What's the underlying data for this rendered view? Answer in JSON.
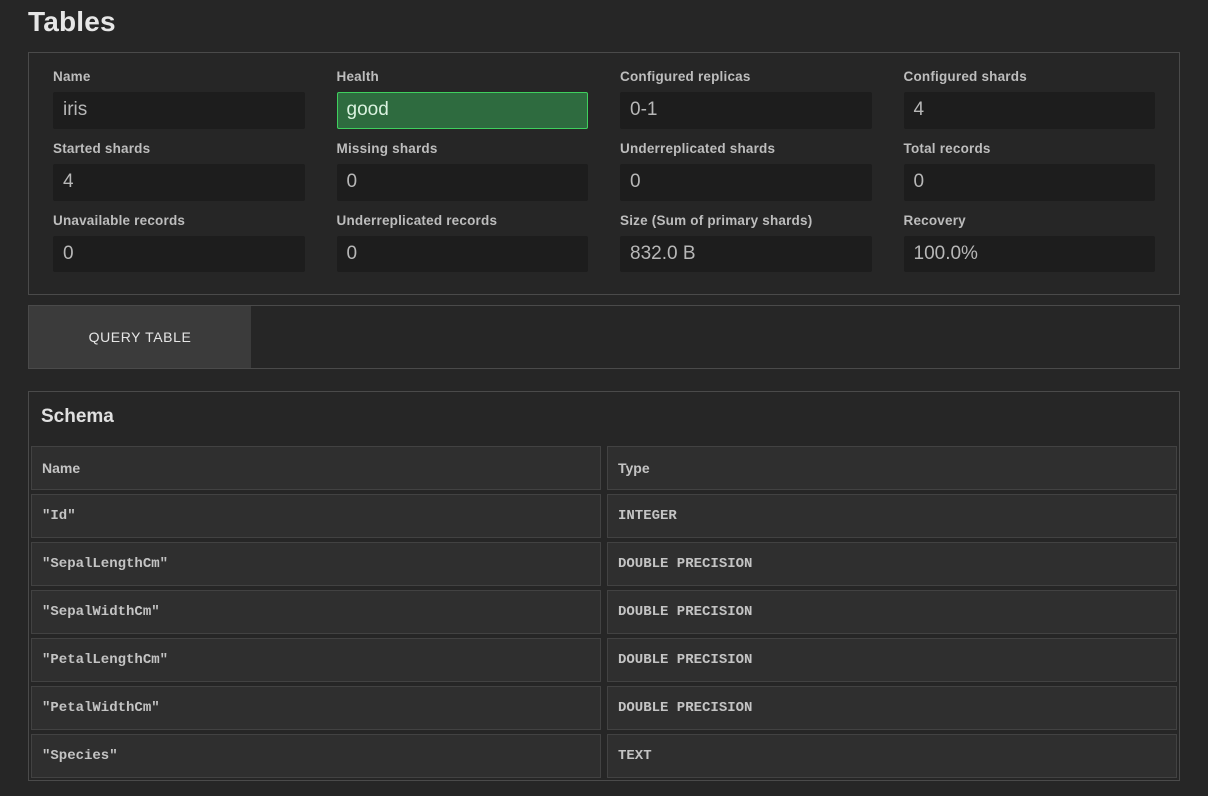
{
  "title": "Tables",
  "stats": {
    "name": {
      "label": "Name",
      "value": "iris"
    },
    "health": {
      "label": "Health",
      "value": "good",
      "status": "good"
    },
    "configured_replicas": {
      "label": "Configured replicas",
      "value": "0-1"
    },
    "configured_shards": {
      "label": "Configured shards",
      "value": "4"
    },
    "started_shards": {
      "label": "Started shards",
      "value": "4"
    },
    "missing_shards": {
      "label": "Missing shards",
      "value": "0"
    },
    "underreplicated_shards": {
      "label": "Underreplicated shards",
      "value": "0"
    },
    "total_records": {
      "label": "Total records",
      "value": "0"
    },
    "unavailable_records": {
      "label": "Unavailable records",
      "value": "0"
    },
    "underreplicated_records": {
      "label": "Underreplicated records",
      "value": "0"
    },
    "size": {
      "label": "Size (Sum of primary shards)",
      "value": "832.0 B"
    },
    "recovery": {
      "label": "Recovery",
      "value": "100.0%"
    }
  },
  "tabs": {
    "query_table": "QUERY TABLE"
  },
  "schema": {
    "title": "Schema",
    "columns": {
      "name": "Name",
      "type": "Type"
    },
    "rows": [
      {
        "name": "\"Id\"",
        "type": "INTEGER"
      },
      {
        "name": "\"SepalLengthCm\"",
        "type": "DOUBLE PRECISION"
      },
      {
        "name": "\"SepalWidthCm\"",
        "type": "DOUBLE PRECISION"
      },
      {
        "name": "\"PetalLengthCm\"",
        "type": "DOUBLE PRECISION"
      },
      {
        "name": "\"PetalWidthCm\"",
        "type": "DOUBLE PRECISION"
      },
      {
        "name": "\"Species\"",
        "type": "TEXT"
      }
    ]
  },
  "colors": {
    "bg": "#262626",
    "panel_border": "#4a4a4a",
    "value_bg": "#1d1d1d",
    "value_text": "#b7b7b7",
    "health_bg": "#2e6b3f",
    "health_border": "#3fcf5e",
    "tab_bg": "#3b3b3b",
    "cell_bg": "#2f2f2f"
  }
}
